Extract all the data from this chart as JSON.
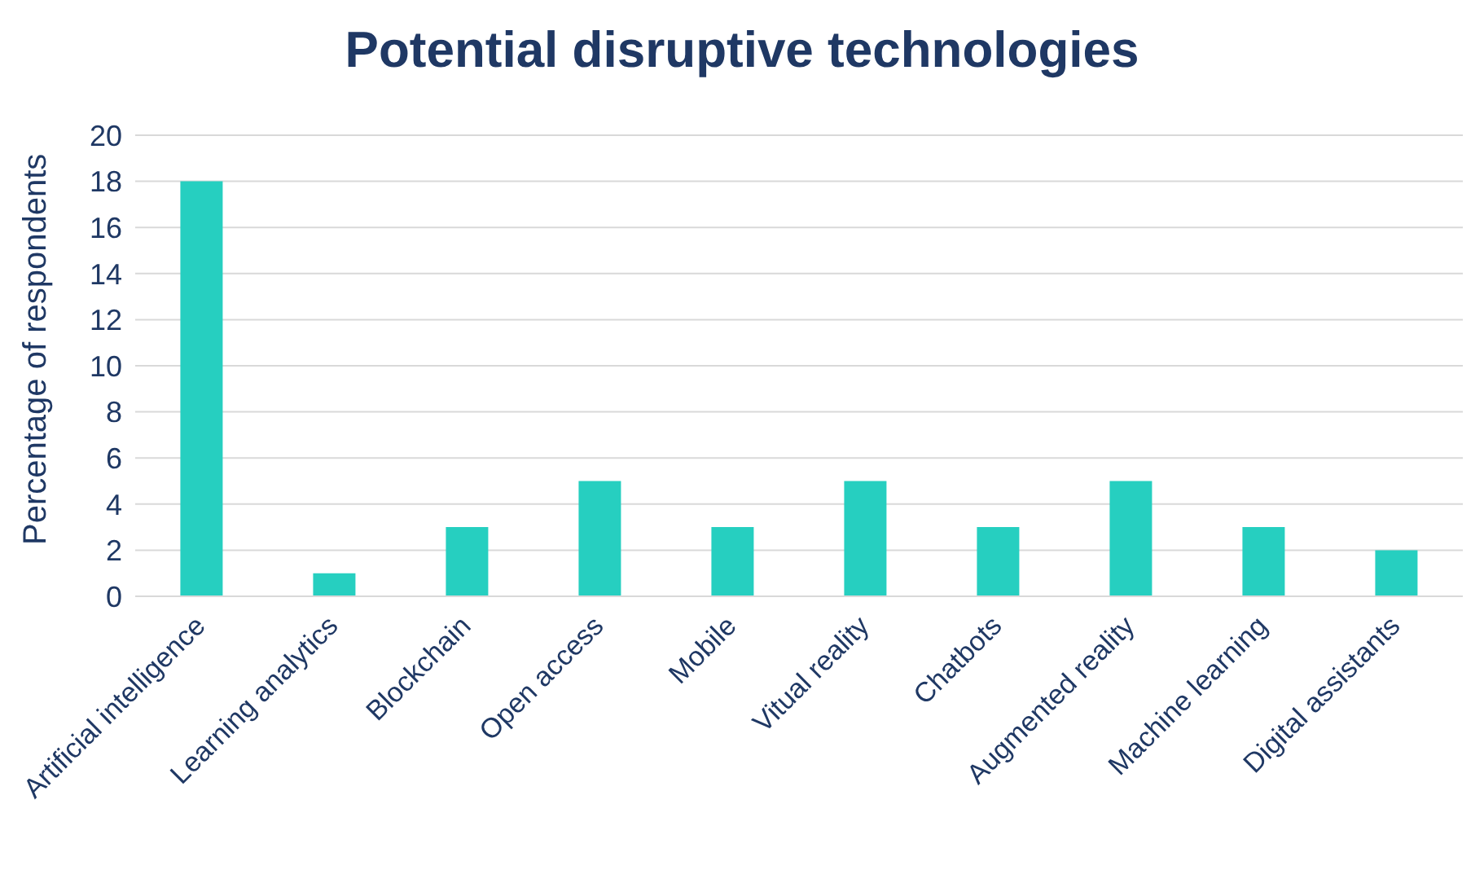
{
  "chart_data": {
    "type": "bar",
    "title": "Potential disruptive technologies",
    "ylabel": "Percentage of respondents",
    "categories": [
      "Artificial intelligence",
      "Learning analytics",
      "Blockchain",
      "Open access",
      "Mobile",
      "Vitual reality",
      "Chatbots",
      "Augmented reality",
      "Machine learning",
      "Digital assistants"
    ],
    "values": [
      18,
      1,
      3,
      5,
      3,
      5,
      3,
      5,
      3,
      2
    ],
    "color": "#26cfc0",
    "ylim": [
      0,
      20
    ],
    "yticks": [
      0,
      2,
      4,
      6,
      8,
      10,
      12,
      14,
      16,
      18,
      20
    ],
    "grid": "y"
  }
}
